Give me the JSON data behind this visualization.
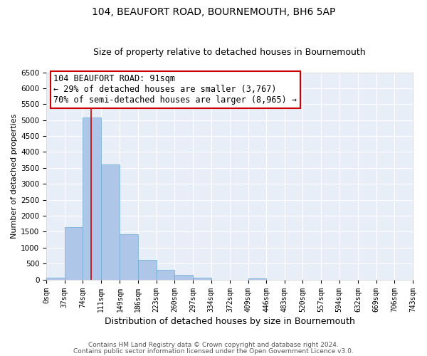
{
  "title": "104, BEAUFORT ROAD, BOURNEMOUTH, BH6 5AP",
  "subtitle": "Size of property relative to detached houses in Bournemouth",
  "xlabel": "Distribution of detached houses by size in Bournemouth",
  "ylabel": "Number of detached properties",
  "bin_edges": [
    0,
    37,
    74,
    111,
    149,
    186,
    223,
    260,
    297,
    334,
    372,
    409,
    446,
    483,
    520,
    557,
    594,
    632,
    669,
    706,
    743
  ],
  "bin_counts": [
    60,
    1650,
    5080,
    3600,
    1430,
    620,
    310,
    150,
    60,
    0,
    0,
    40,
    0,
    0,
    0,
    0,
    0,
    0,
    0,
    0
  ],
  "bar_color": "#aec6e8",
  "bar_edge_color": "#6aaad4",
  "property_line_x": 91,
  "property_line_color": "#cc0000",
  "ylim": [
    0,
    6500
  ],
  "yticks": [
    0,
    500,
    1000,
    1500,
    2000,
    2500,
    3000,
    3500,
    4000,
    4500,
    5000,
    5500,
    6000,
    6500
  ],
  "annotation_text": "104 BEAUFORT ROAD: 91sqm\n← 29% of detached houses are smaller (3,767)\n70% of semi-detached houses are larger (8,965) →",
  "annotation_box_color": "#ffffff",
  "annotation_box_edgecolor": "#cc0000",
  "footer_line1": "Contains HM Land Registry data © Crown copyright and database right 2024.",
  "footer_line2": "Contains public sector information licensed under the Open Government Licence v3.0.",
  "bg_color": "#e8eef8",
  "plot_bg_color": "#e8eef8",
  "grid_color": "#ffffff",
  "title_fontsize": 10,
  "subtitle_fontsize": 9,
  "ylabel_fontsize": 8,
  "xlabel_fontsize": 9,
  "tick_label_fontsize": 7,
  "annotation_fontsize": 8.5,
  "footer_fontsize": 6.5
}
